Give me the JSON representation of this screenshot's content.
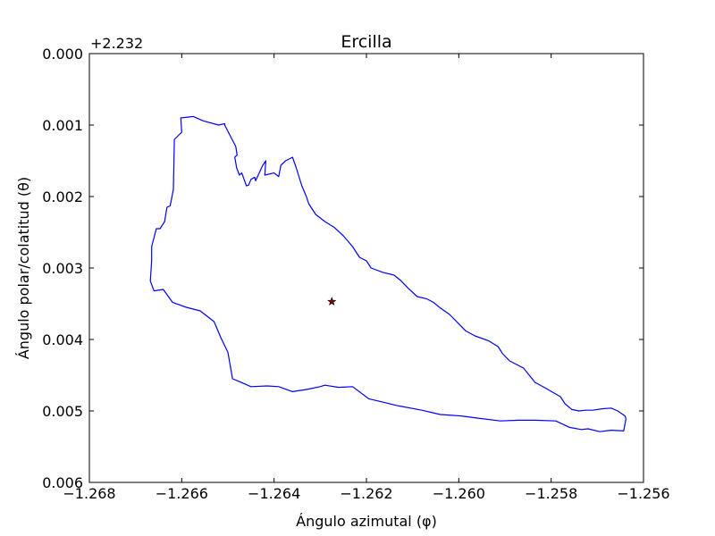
{
  "chart_data": {
    "type": "line",
    "title": "Ercilla",
    "xlabel": "Ángulo azimutal (φ)",
    "ylabel": "Ángulo polar/colatitud (θ)",
    "y_offset_label": "+2.232",
    "xlim": [
      -1.268,
      -1.256
    ],
    "ylim_offset": [
      0.0,
      0.006
    ],
    "y_inverted": true,
    "grid": false,
    "x_ticks": [
      "−1.268",
      "−1.266",
      "−1.264",
      "−1.262",
      "−1.260",
      "−1.258",
      "−1.256"
    ],
    "y_ticks": [
      "0.000",
      "0.001",
      "0.002",
      "0.003",
      "0.004",
      "0.005",
      "0.006"
    ],
    "series": [
      {
        "style": "outline",
        "color": "#0000ff",
        "x": [
          -1.26602,
          -1.26575,
          -1.26554,
          -1.2652,
          -1.26507,
          -1.26507,
          -1.26495,
          -1.26483,
          -1.2648,
          -1.26485,
          -1.26481,
          -1.26475,
          -1.2647,
          -1.2646,
          -1.26455,
          -1.2645,
          -1.26442,
          -1.2644,
          -1.26425,
          -1.26418,
          -1.2642,
          -1.264,
          -1.2639,
          -1.26385,
          -1.26375,
          -1.2636,
          -1.26352,
          -1.2634,
          -1.2633,
          -1.26325,
          -1.2631,
          -1.2629,
          -1.26285,
          -1.2627,
          -1.2625,
          -1.2623,
          -1.26215,
          -1.262,
          -1.2619,
          -1.26165,
          -1.2614,
          -1.26125,
          -1.2611,
          -1.2609,
          -1.2607,
          -1.26055,
          -1.2604,
          -1.2602,
          -1.26,
          -1.25985,
          -1.25965,
          -1.25935,
          -1.25915,
          -1.25905,
          -1.2589,
          -1.2586,
          -1.25835,
          -1.25815,
          -1.2578,
          -1.2577,
          -1.25755,
          -1.2574,
          -1.25725,
          -1.2571,
          -1.2569,
          -1.2567,
          -1.25656,
          -1.2564,
          -1.25638,
          -1.25643,
          -1.2567,
          -1.25695,
          -1.2572,
          -1.25735,
          -1.2576,
          -1.2579,
          -1.25835,
          -1.2587,
          -1.2591,
          -1.2596,
          -1.25995,
          -1.2604,
          -1.2608,
          -1.2613,
          -1.26175,
          -1.26195,
          -1.2623,
          -1.2626,
          -1.2629,
          -1.263,
          -1.2633,
          -1.2636,
          -1.2639,
          -1.26415,
          -1.2645,
          -1.26475,
          -1.2649,
          -1.265,
          -1.26515,
          -1.2653,
          -1.2656,
          -1.2659,
          -1.2662,
          -1.2664,
          -1.2666,
          -1.26668,
          -1.26665,
          -1.26665,
          -1.26655,
          -1.26647,
          -1.26637,
          -1.26632,
          -1.26625,
          -1.26618,
          -1.26616,
          -1.266
        ],
        "y": [
          0.0009,
          0.00088,
          0.00094,
          0.001,
          0.00098,
          0.001,
          0.00115,
          0.0013,
          0.00142,
          0.00145,
          0.0016,
          0.0017,
          0.00167,
          0.00185,
          0.00184,
          0.00176,
          0.00173,
          0.00178,
          0.00157,
          0.0015,
          0.0017,
          0.00167,
          0.00172,
          0.00156,
          0.0015,
          0.00145,
          0.0016,
          0.00185,
          0.002,
          0.0021,
          0.00225,
          0.00235,
          0.00237,
          0.00243,
          0.00255,
          0.0027,
          0.00285,
          0.0029,
          0.003,
          0.00306,
          0.0031,
          0.00318,
          0.00328,
          0.0034,
          0.00343,
          0.00348,
          0.00356,
          0.00365,
          0.00378,
          0.00388,
          0.00395,
          0.00402,
          0.0041,
          0.0042,
          0.0043,
          0.0044,
          0.0046,
          0.00467,
          0.0048,
          0.0049,
          0.00498,
          0.005,
          0.00499,
          0.00499,
          0.00497,
          0.00496,
          0.005,
          0.00507,
          0.00511,
          0.00528,
          0.00527,
          0.00529,
          0.00525,
          0.00526,
          0.00523,
          0.00514,
          0.00513,
          0.00513,
          0.00514,
          0.0051,
          0.00507,
          0.00505,
          0.00499,
          0.00493,
          0.00486,
          0.00483,
          0.00466,
          0.00467,
          0.00464,
          0.00466,
          0.0047,
          0.00473,
          0.00466,
          0.00465,
          0.00466,
          0.00459,
          0.00455,
          0.00418,
          0.00398,
          0.00375,
          0.0036,
          0.00355,
          0.00348,
          0.0033,
          0.00332,
          0.00318,
          0.0029,
          0.0027,
          0.00245,
          0.00245,
          0.00235,
          0.00215,
          0.00213,
          0.0019,
          0.0012,
          0.0011
        ]
      },
      {
        "style": "marker",
        "marker": "star",
        "color": "#8b0000",
        "x": [
          -1.26275
        ],
        "y": [
          0.00347
        ]
      }
    ]
  }
}
